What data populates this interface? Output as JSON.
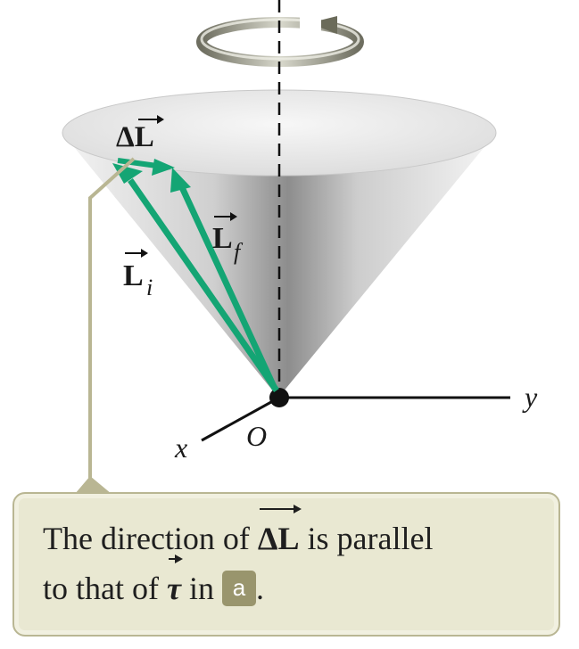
{
  "labels": {
    "delta_l": "ΔL",
    "delta": "Δ",
    "l": "L",
    "l_i_sub": "i",
    "l_f_sub": "f",
    "origin": "O",
    "x_axis": "x",
    "y_axis": "y"
  },
  "caption": {
    "part1": "The direction of ",
    "delta_l": "ΔL",
    "part2": " is parallel",
    "part3": "to that of ",
    "tau": "τ",
    "part4": " in ",
    "badge": "a",
    "part5": "."
  },
  "colors": {
    "arrow_green": "#14a574",
    "callout": "#b9b693",
    "caption_bg": "#e9e8d2",
    "badge": "#99956d"
  }
}
